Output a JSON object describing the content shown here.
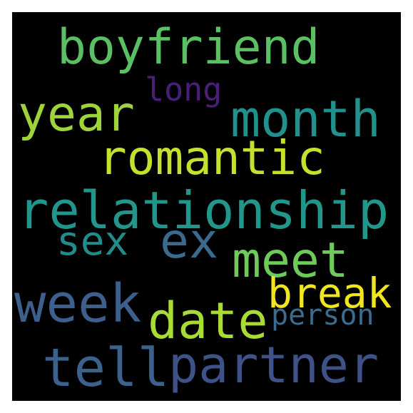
{
  "words": [
    {
      "id": "boyfriend",
      "text": "boyfriend",
      "color": "#5bbf63"
    },
    {
      "id": "long",
      "text": "long",
      "color": "#4a1f78"
    },
    {
      "id": "year",
      "text": "year",
      "color": "#9fd33a"
    },
    {
      "id": "month",
      "text": "month",
      "color": "#22908c"
    },
    {
      "id": "romantic",
      "text": "romantic",
      "color": "#c7e02b"
    },
    {
      "id": "relationship",
      "text": "relationship",
      "color": "#23968b"
    },
    {
      "id": "sex",
      "text": "sex",
      "color": "#228c8d"
    },
    {
      "id": "ex",
      "text": "ex",
      "color": "#3a6a8e"
    },
    {
      "id": "meet",
      "text": "meet",
      "color": "#6ecb5a"
    },
    {
      "id": "break",
      "text": "break",
      "color": "#f1e51d"
    },
    {
      "id": "week",
      "text": "week",
      "color": "#3c5f8c"
    },
    {
      "id": "date",
      "text": "date",
      "color": "#a8db34"
    },
    {
      "id": "person",
      "text": "person",
      "color": "#3b6c8d"
    },
    {
      "id": "tell",
      "text": "tell",
      "color": "#3b618c"
    },
    {
      "id": "partner",
      "text": "partner",
      "color": "#3e5289"
    }
  ]
}
